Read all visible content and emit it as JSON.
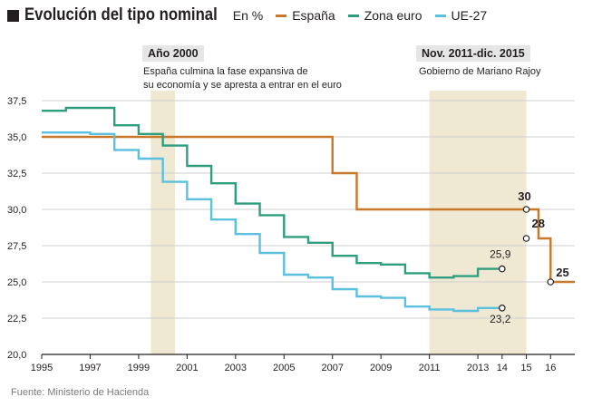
{
  "header": {
    "title": "Evolución del tipo nominal",
    "unit": "En %"
  },
  "legend": [
    {
      "name": "España",
      "color": "#c8782a"
    },
    {
      "name": "Zona euro",
      "color": "#2e9e7e"
    },
    {
      "name": "UE-27",
      "color": "#5bc0de"
    }
  ],
  "periods": [
    {
      "label": "Año 2000",
      "lines": [
        "España culmina la fase expansiva de",
        "su economía y se apresta a entrar en el euro"
      ],
      "start": 1999.5,
      "end": 2000.5
    },
    {
      "label": "Nov. 2011-dic. 2015",
      "lines": [
        "Gobierno de Mariano Rajoy"
      ],
      "start": 2011.0,
      "end": 2015.0
    }
  ],
  "source": "Fuente: Ministerio de Hacienda",
  "chart_data": {
    "type": "line",
    "step": true,
    "xlim": [
      1995,
      2017
    ],
    "ylim": [
      20,
      37.5
    ],
    "yticks": [
      "20,0",
      "22,5",
      "25,0",
      "27,5",
      "30,0",
      "32,5",
      "35,0",
      "37,5"
    ],
    "ytick_values": [
      20,
      22.5,
      25,
      27.5,
      30,
      32.5,
      35,
      37.5
    ],
    "xticks": [
      "1995",
      "1997",
      "1999",
      "2001",
      "2003",
      "2005",
      "2007",
      "2009",
      "2011",
      "2013",
      "14",
      "15",
      "16"
    ],
    "xtick_values": [
      1995,
      1997,
      1999,
      2001,
      2003,
      2005,
      2007,
      2009,
      2011,
      2013,
      2014,
      2015,
      2016
    ],
    "grid": true,
    "series": [
      {
        "name": "España",
        "color": "#c8782a",
        "x": [
          1995,
          2007,
          2008,
          2015,
          2015.5,
          2016,
          2017
        ],
        "y": [
          35,
          32.5,
          30,
          30,
          28,
          25,
          25
        ]
      },
      {
        "name": "Zona euro",
        "color": "#2e9e7e",
        "x": [
          1995,
          1996,
          1998,
          1999,
          2000,
          2001,
          2002,
          2003,
          2004,
          2005,
          2006,
          2007,
          2008,
          2009,
          2010,
          2011,
          2012,
          2013,
          2014
        ],
        "y": [
          36.8,
          37.0,
          35.8,
          35.2,
          34.4,
          33.0,
          31.8,
          30.4,
          29.6,
          28.1,
          27.7,
          26.8,
          26.3,
          26.2,
          25.6,
          25.3,
          25.4,
          25.9,
          25.9
        ]
      },
      {
        "name": "UE-27",
        "color": "#5bc0de",
        "x": [
          1995,
          1997,
          1998,
          1999,
          2000,
          2001,
          2002,
          2003,
          2004,
          2005,
          2006,
          2007,
          2008,
          2009,
          2010,
          2011,
          2012,
          2013,
          2014
        ],
        "y": [
          35.3,
          35.2,
          34.1,
          33.5,
          31.9,
          30.7,
          29.3,
          28.3,
          27.0,
          25.5,
          25.3,
          24.5,
          24.0,
          23.9,
          23.3,
          23.1,
          23.0,
          23.2,
          23.2
        ]
      }
    ],
    "annotations": [
      {
        "text": "30",
        "x": 2015,
        "y": 30,
        "series": "España"
      },
      {
        "text": "28",
        "x": 2015,
        "y": 28,
        "series": "España"
      },
      {
        "text": "25",
        "x": 2016,
        "y": 25,
        "series": "España"
      },
      {
        "text": "25,9",
        "x": 2014,
        "y": 25.9,
        "series": "Zona euro"
      },
      {
        "text": "23,2",
        "x": 2014,
        "y": 23.2,
        "series": "UE-27"
      }
    ]
  }
}
